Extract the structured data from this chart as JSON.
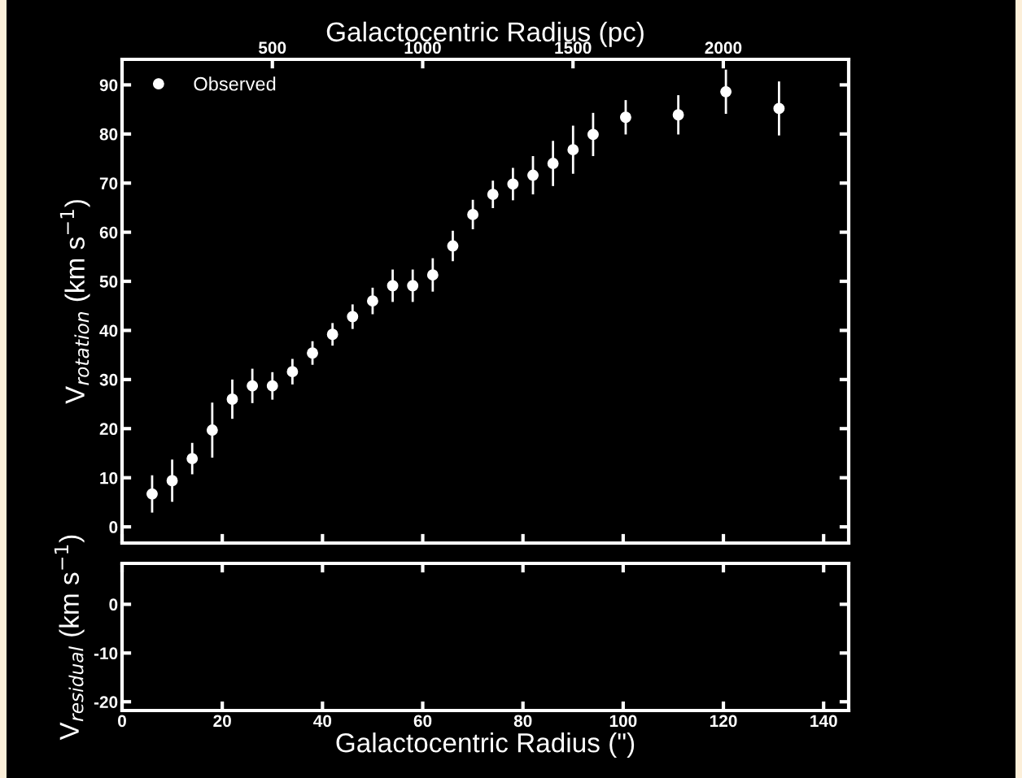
{
  "chart_data": [
    {
      "type": "scatter",
      "x2label": "Galactocentric Radius (pc)",
      "ylabel": "V$_{rotation}$ (km s$^{−1}$)",
      "x": [
        6.0,
        10.0,
        14.0,
        18.0,
        22.0,
        26.0,
        30.0,
        34.0,
        38.0,
        42.0,
        46.0,
        50.0,
        54.0,
        58.0,
        62.0,
        66.0,
        70.0,
        74.0,
        78.0,
        82.0,
        86.0,
        90.0,
        94.0,
        100.5,
        111.0,
        120.5,
        131.1
      ],
      "series": [
        {
          "name": "Observed",
          "color": "#ffffff",
          "values": [
            6.7,
            9.4,
            13.9,
            19.7,
            26.0,
            28.7,
            28.7,
            31.6,
            35.4,
            39.2,
            42.8,
            46.0,
            49.1,
            49.1,
            51.3,
            57.2,
            63.6,
            67.7,
            69.8,
            71.6,
            74.0,
            76.8,
            79.9,
            83.4,
            83.9,
            88.6,
            85.2
          ],
          "errors": [
            3.8,
            4.3,
            3.2,
            5.6,
            4.0,
            3.5,
            2.8,
            2.6,
            2.4,
            2.3,
            2.5,
            2.7,
            3.3,
            3.3,
            3.4,
            3.1,
            3.0,
            2.8,
            3.3,
            3.9,
            4.6,
            4.9,
            4.4,
            3.5,
            4.0,
            4.5,
            5.5
          ]
        }
      ],
      "marker": "circle",
      "legend": "top left",
      "grid": false,
      "tick_labels": "y",
      "xlim": [
        0,
        145
      ],
      "xticks": [
        0,
        20,
        40,
        60,
        80,
        100,
        120,
        140
      ],
      "x2lim": [
        0,
        2417
      ],
      "x2ticks": [
        500,
        1000,
        1500,
        2000
      ],
      "ylim": [
        -3.3,
        95.2
      ],
      "yticks": [
        0,
        10,
        20,
        30,
        40,
        50,
        60,
        70,
        80,
        90
      ]
    },
    {
      "type": "scatter",
      "xlabel": "Galactocentric Radius (\")",
      "ylabel": "V$_{residual}$ (km s$^{−1}$)",
      "grid": false,
      "xlim": [
        0,
        145
      ],
      "xticks": [
        0,
        20,
        40,
        60,
        80,
        100,
        120,
        140
      ],
      "ylim": [
        -21.8,
        8.4
      ],
      "yticks": [
        -20,
        -10,
        0
      ]
    }
  ]
}
